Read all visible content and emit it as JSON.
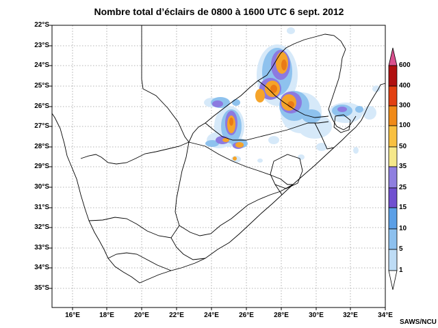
{
  "title": "Nombre total d’éclairs de 0800 à 1600 UTC 6 sept. 2012",
  "credit": "SAWS/NCU",
  "latitude_labels": [
    "22°S",
    "23°S",
    "24°S",
    "25°S",
    "26°S",
    "27°S",
    "28°S",
    "29°S",
    "30°S",
    "31°S",
    "32°S",
    "33°S",
    "34°S",
    "35°S"
  ],
  "longitude_labels": [
    "16°E",
    "18°E",
    "20°E",
    "22°E",
    "24°E",
    "26°E",
    "28°E",
    "30°E",
    "32°E",
    "34°E"
  ],
  "colorbar": {
    "levels": [
      "1",
      "5",
      "10",
      "15",
      "25",
      "35",
      "50",
      "100",
      "300",
      "400",
      "600"
    ],
    "colors": [
      "#e4f1fb",
      "#bedcf5",
      "#8dc0ee",
      "#5b9fe6",
      "#8f7fe0",
      "#7050d0",
      "#f6e88a",
      "#f8c040",
      "#f08a18",
      "#e24012",
      "#b01010",
      "#d9508e"
    ]
  }
}
